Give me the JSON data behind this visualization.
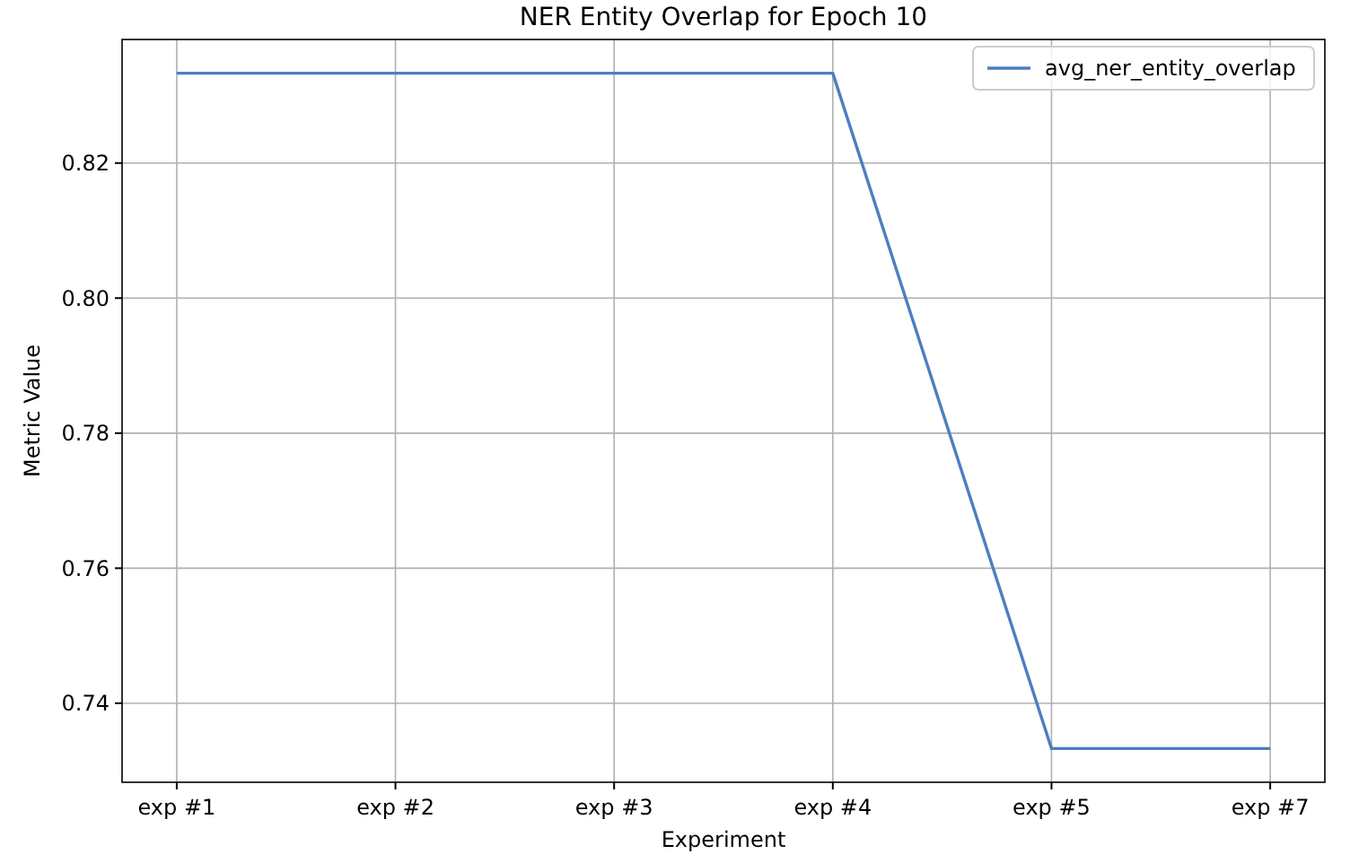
{
  "chart_data": {
    "type": "line",
    "title": "NER Entity Overlap for Epoch 10",
    "xlabel": "Experiment",
    "ylabel": "Metric Value",
    "categories": [
      "exp #1",
      "exp #2",
      "exp #3",
      "exp #4",
      "exp #5",
      "exp #7"
    ],
    "series": [
      {
        "name": "avg_ner_entity_overlap",
        "color": "#4c7fbf",
        "values": [
          0.8333,
          0.8333,
          0.8333,
          0.8333,
          0.7333,
          0.7333
        ]
      }
    ],
    "ylim": [
      0.7283,
      0.8383
    ],
    "yticks": [
      0.74,
      0.76,
      0.78,
      {
        "value": 0.8,
        "label": "0.80"
      },
      0.82
    ],
    "grid": true,
    "legend": "top right"
  }
}
